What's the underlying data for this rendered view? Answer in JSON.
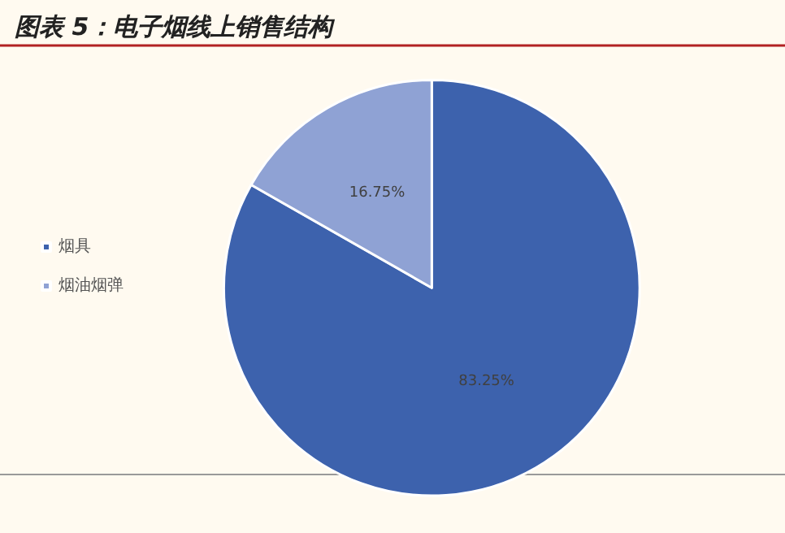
{
  "chart_data": {
    "type": "pie",
    "title": "图表 5：电子烟线上销售结构",
    "categories": [
      "烟具",
      "烟油烟弹"
    ],
    "values": [
      83.25,
      16.75
    ],
    "colors": [
      "#3d62ad",
      "#8fa2d4"
    ],
    "value_labels": [
      "83.25%",
      "16.75%"
    ],
    "legend": "left"
  }
}
